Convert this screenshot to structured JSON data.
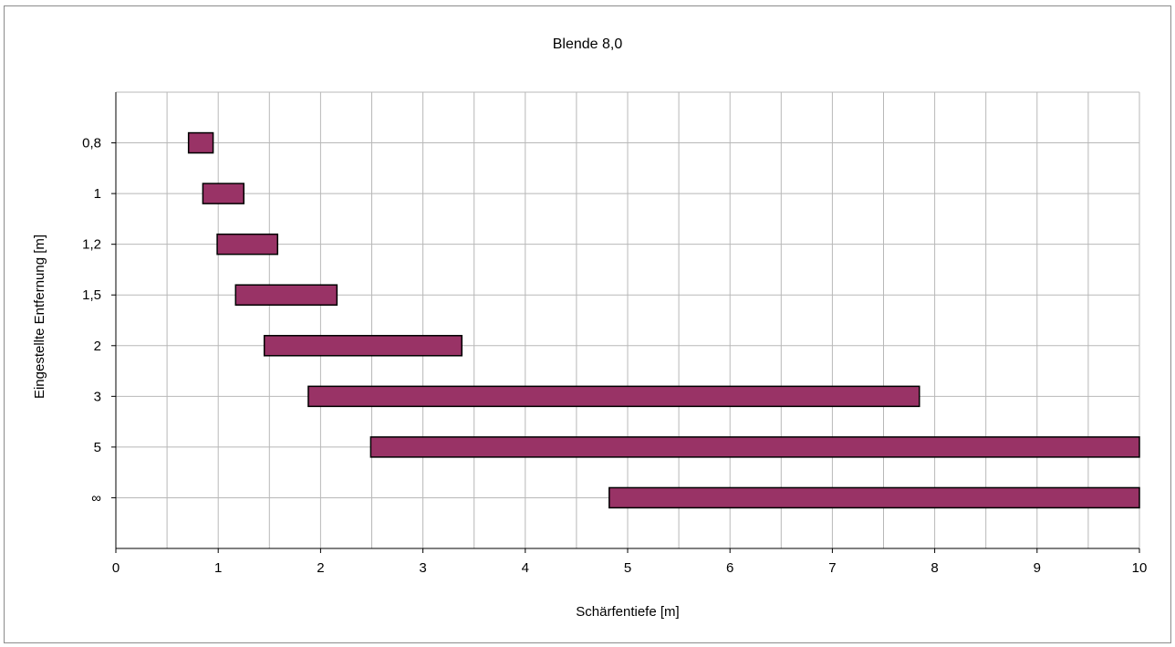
{
  "chart_data": {
    "type": "bar",
    "orientation": "horizontal",
    "title": "Blende 8,0",
    "xlabel": "Schärfentiefe [m]",
    "ylabel": "Eingestellte Entfernung [m]",
    "xlim": [
      0,
      10
    ],
    "x_ticks": [
      "0",
      "1",
      "2",
      "3",
      "4",
      "5",
      "6",
      "7",
      "8",
      "9",
      "10"
    ],
    "x_minor_step": 0.5,
    "grid": true,
    "legend": "none",
    "bar_color": "#993366",
    "bar_border_color": "#000000",
    "categories": [
      "0,8",
      "1",
      "1,2",
      "1,5",
      "2",
      "3",
      "5",
      "∞"
    ],
    "ranges": [
      [
        0.71,
        0.95
      ],
      [
        0.85,
        1.25
      ],
      [
        0.99,
        1.58
      ],
      [
        1.17,
        2.16
      ],
      [
        1.45,
        3.38
      ],
      [
        1.88,
        7.85
      ],
      [
        2.49,
        10
      ],
      [
        4.82,
        10
      ]
    ]
  }
}
